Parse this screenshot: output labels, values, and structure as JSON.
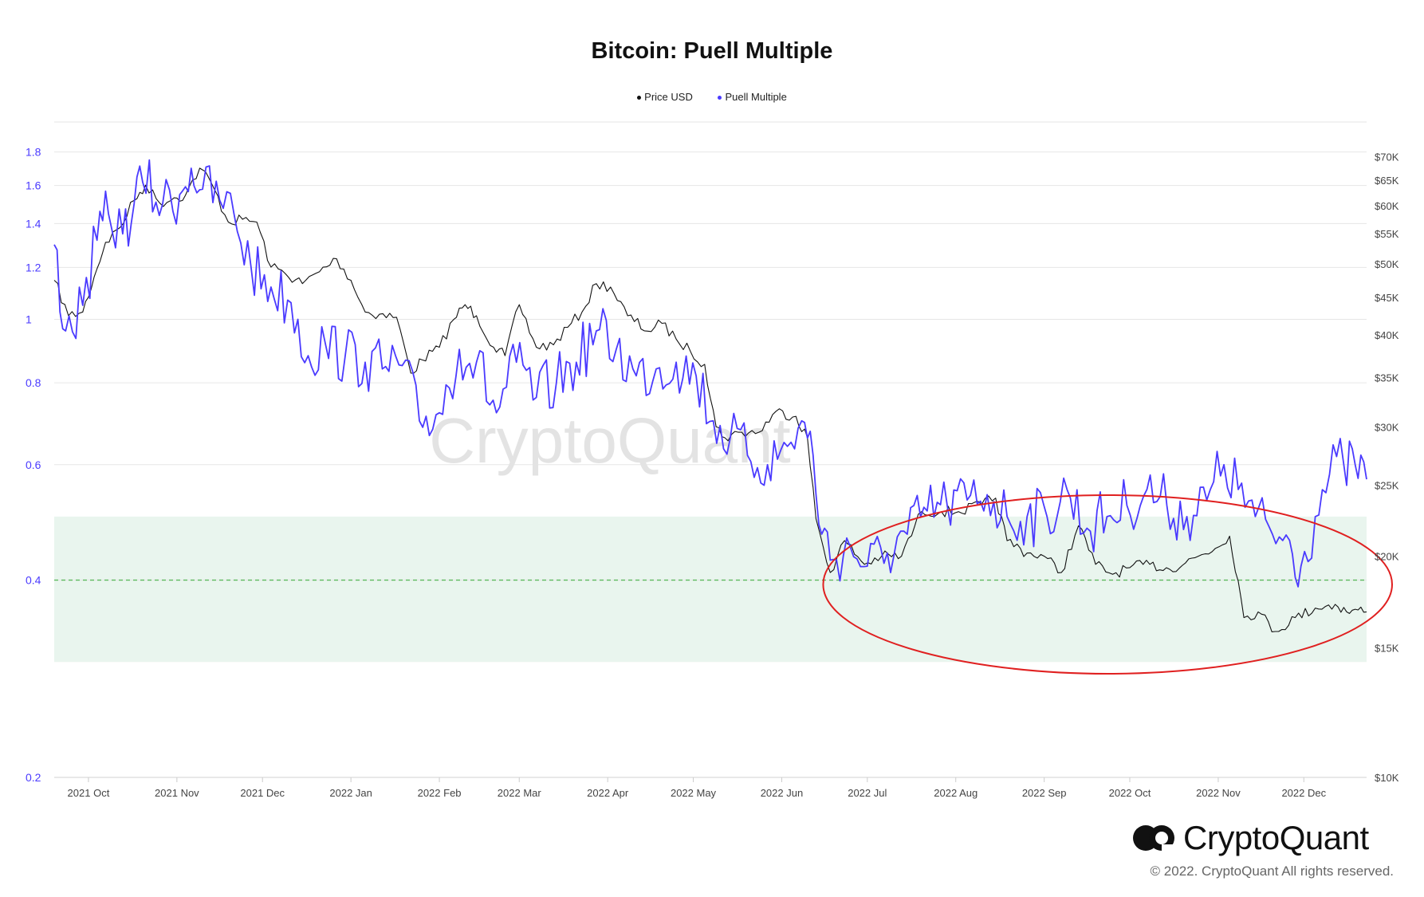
{
  "chart_data": {
    "type": "line",
    "title": "Bitcoin: Puell Multiple",
    "legend": [
      "Price USD",
      "Puell Multiple"
    ],
    "legend_position": "top-center",
    "watermark": "CryptoQuant",
    "x_range": [
      "2021-09-19",
      "2022-12-23"
    ],
    "x_ticks": [
      "2021 Oct",
      "2021 Nov",
      "2021 Dec",
      "2022 Jan",
      "2022 Feb",
      "2022 Mar",
      "2022 Apr",
      "2022 May",
      "2022 Jun",
      "2022 Jul",
      "2022 Aug",
      "2022 Sep",
      "2022 Oct",
      "2022 Nov",
      "2022 Dec"
    ],
    "left_axis": {
      "scale": "log",
      "range": [
        0.2,
        2.0
      ],
      "ticks": [
        "1.8",
        "1.6",
        "1.4",
        "1.2",
        "1",
        "0.8",
        "0.6",
        "0.4",
        "0.2"
      ],
      "color": "#4a3aff"
    },
    "right_axis": {
      "scale": "log",
      "range": [
        10000,
        78000
      ],
      "ticks": [
        "$70K",
        "$65K",
        "$60K",
        "$55K",
        "$50K",
        "$45K",
        "$40K",
        "$35K",
        "$30K",
        "$25K",
        "$20K",
        "$15K",
        "$10K"
      ]
    },
    "grid": true,
    "band": {
      "from": 0.3,
      "to": 0.5,
      "color": "#e9f5ee"
    },
    "reference_line": {
      "value": 0.4,
      "color": "#5cb85c",
      "style": "dashed"
    },
    "annotation": {
      "shape": "ellipse",
      "color": "#e02020",
      "from": "2022-06-20",
      "to": "2022-12-23"
    },
    "series": [
      {
        "name": "Price USD",
        "color": "#111111",
        "axis": "right",
        "points": [
          [
            "2021-09-19",
            47500
          ],
          [
            "2021-09-24",
            42500
          ],
          [
            "2021-09-29",
            43000
          ],
          [
            "2021-10-03",
            48000
          ],
          [
            "2021-10-07",
            53500
          ],
          [
            "2021-10-12",
            56000
          ],
          [
            "2021-10-17",
            61000
          ],
          [
            "2021-10-21",
            64000
          ],
          [
            "2021-10-26",
            60500
          ],
          [
            "2021-10-31",
            61500
          ],
          [
            "2021-11-04",
            62000
          ],
          [
            "2021-11-09",
            67500
          ],
          [
            "2021-11-13",
            64500
          ],
          [
            "2021-11-19",
            57000
          ],
          [
            "2021-11-24",
            57500
          ],
          [
            "2021-11-29",
            57000
          ],
          [
            "2021-12-04",
            49500
          ],
          [
            "2021-12-09",
            48500
          ],
          [
            "2021-12-15",
            47000
          ],
          [
            "2021-12-21",
            48800
          ],
          [
            "2021-12-27",
            50800
          ],
          [
            "2022-01-01",
            47500
          ],
          [
            "2022-01-06",
            43000
          ],
          [
            "2022-01-11",
            42700
          ],
          [
            "2022-01-17",
            42300
          ],
          [
            "2022-01-22",
            35500
          ],
          [
            "2022-01-26",
            37000
          ],
          [
            "2022-02-01",
            38500
          ],
          [
            "2022-02-06",
            42000
          ],
          [
            "2022-02-10",
            44000
          ],
          [
            "2022-02-14",
            42500
          ],
          [
            "2022-02-20",
            38500
          ],
          [
            "2022-02-24",
            37500
          ],
          [
            "2022-03-01",
            44000
          ],
          [
            "2022-03-07",
            38500
          ],
          [
            "2022-03-13",
            38800
          ],
          [
            "2022-03-18",
            41000
          ],
          [
            "2022-03-23",
            43000
          ],
          [
            "2022-03-28",
            47000
          ],
          [
            "2022-04-02",
            46500
          ],
          [
            "2022-04-08",
            42500
          ],
          [
            "2022-04-15",
            40500
          ],
          [
            "2022-04-20",
            41500
          ],
          [
            "2022-04-25",
            39500
          ],
          [
            "2022-04-30",
            38000
          ],
          [
            "2022-05-05",
            36500
          ],
          [
            "2022-05-09",
            30000
          ],
          [
            "2022-05-12",
            29000
          ],
          [
            "2022-05-18",
            29500
          ],
          [
            "2022-05-24",
            29500
          ],
          [
            "2022-05-30",
            31500
          ],
          [
            "2022-06-06",
            31000
          ],
          [
            "2022-06-10",
            29000
          ],
          [
            "2022-06-13",
            22500
          ],
          [
            "2022-06-18",
            19000
          ],
          [
            "2022-06-23",
            21000
          ],
          [
            "2022-06-30",
            19500
          ],
          [
            "2022-07-06",
            20000
          ],
          [
            "2022-07-13",
            20000
          ],
          [
            "2022-07-20",
            23000
          ],
          [
            "2022-07-27",
            23000
          ],
          [
            "2022-08-02",
            23000
          ],
          [
            "2022-08-10",
            23500
          ],
          [
            "2022-08-15",
            24000
          ],
          [
            "2022-08-19",
            21000
          ],
          [
            "2022-08-26",
            20200
          ],
          [
            "2022-09-01",
            20000
          ],
          [
            "2022-09-07",
            19000
          ],
          [
            "2022-09-13",
            22000
          ],
          [
            "2022-09-19",
            19500
          ],
          [
            "2022-09-25",
            18900
          ],
          [
            "2022-10-01",
            19300
          ],
          [
            "2022-10-08",
            19500
          ],
          [
            "2022-10-15",
            19200
          ],
          [
            "2022-10-25",
            20000
          ],
          [
            "2022-10-31",
            20500
          ],
          [
            "2022-11-05",
            21300
          ],
          [
            "2022-11-08",
            18500
          ],
          [
            "2022-11-10",
            16500
          ],
          [
            "2022-11-15",
            16800
          ],
          [
            "2022-11-21",
            15800
          ],
          [
            "2022-11-28",
            16500
          ],
          [
            "2022-12-05",
            17000
          ],
          [
            "2022-12-12",
            17200
          ],
          [
            "2022-12-16",
            16800
          ],
          [
            "2022-12-20",
            16900
          ],
          [
            "2022-12-23",
            16800
          ]
        ]
      },
      {
        "name": "Puell Multiple",
        "color": "#4a3aff",
        "axis": "left",
        "points": [
          [
            "2021-09-19",
            1.3
          ],
          [
            "2021-09-23",
            0.96
          ],
          [
            "2021-09-29",
            1.05
          ],
          [
            "2021-10-04",
            1.32
          ],
          [
            "2021-10-08",
            1.45
          ],
          [
            "2021-10-13",
            1.35
          ],
          [
            "2021-10-17",
            1.5
          ],
          [
            "2021-10-20",
            1.62
          ],
          [
            "2021-10-27",
            1.5
          ],
          [
            "2021-11-02",
            1.55
          ],
          [
            "2021-11-06",
            1.7
          ],
          [
            "2021-11-10",
            1.58
          ],
          [
            "2021-11-16",
            1.52
          ],
          [
            "2021-11-21",
            1.45
          ],
          [
            "2021-11-27",
            1.2
          ],
          [
            "2021-12-04",
            1.12
          ],
          [
            "2021-12-11",
            1.06
          ],
          [
            "2021-12-17",
            0.88
          ],
          [
            "2021-12-23",
            0.92
          ],
          [
            "2021-12-30",
            0.88
          ],
          [
            "2022-01-06",
            0.86
          ],
          [
            "2022-01-12",
            0.84
          ],
          [
            "2022-01-19",
            0.85
          ],
          [
            "2022-01-25",
            0.7
          ],
          [
            "2022-02-01",
            0.72
          ],
          [
            "2022-02-08",
            0.9
          ],
          [
            "2022-02-14",
            0.86
          ],
          [
            "2022-02-21",
            0.72
          ],
          [
            "2022-02-28",
            0.86
          ],
          [
            "2022-03-07",
            0.76
          ],
          [
            "2022-03-14",
            0.8
          ],
          [
            "2022-03-21",
            0.86
          ],
          [
            "2022-03-28",
            0.96
          ],
          [
            "2022-04-04",
            0.9
          ],
          [
            "2022-04-11",
            0.82
          ],
          [
            "2022-04-18",
            0.84
          ],
          [
            "2022-04-25",
            0.86
          ],
          [
            "2022-05-02",
            0.82
          ],
          [
            "2022-05-08",
            0.7
          ],
          [
            "2022-05-14",
            0.66
          ],
          [
            "2022-05-20",
            0.62
          ],
          [
            "2022-05-27",
            0.6
          ],
          [
            "2022-06-03",
            0.64
          ],
          [
            "2022-06-08",
            0.7
          ],
          [
            "2022-06-12",
            0.62
          ],
          [
            "2022-06-15",
            0.47
          ],
          [
            "2022-06-19",
            0.43
          ],
          [
            "2022-06-25",
            0.45
          ],
          [
            "2022-07-01",
            0.42
          ],
          [
            "2022-07-08",
            0.44
          ],
          [
            "2022-07-15",
            0.47
          ],
          [
            "2022-07-22",
            0.51
          ],
          [
            "2022-07-29",
            0.52
          ],
          [
            "2022-08-05",
            0.53
          ],
          [
            "2022-08-12",
            0.54
          ],
          [
            "2022-08-19",
            0.5
          ],
          [
            "2022-08-26",
            0.5
          ],
          [
            "2022-09-02",
            0.5
          ],
          [
            "2022-09-09",
            0.55
          ],
          [
            "2022-09-16",
            0.48
          ],
          [
            "2022-09-23",
            0.5
          ],
          [
            "2022-09-30",
            0.52
          ],
          [
            "2022-10-07",
            0.55
          ],
          [
            "2022-10-14",
            0.52
          ],
          [
            "2022-10-21",
            0.5
          ],
          [
            "2022-10-28",
            0.53
          ],
          [
            "2022-11-03",
            0.6
          ],
          [
            "2022-11-08",
            0.55
          ],
          [
            "2022-11-14",
            0.5
          ],
          [
            "2022-11-20",
            0.47
          ],
          [
            "2022-11-26",
            0.46
          ],
          [
            "2022-11-30",
            0.42
          ],
          [
            "2022-12-05",
            0.5
          ],
          [
            "2022-12-10",
            0.58
          ],
          [
            "2022-12-15",
            0.6
          ],
          [
            "2022-12-19",
            0.6
          ],
          [
            "2022-12-23",
            0.57
          ]
        ]
      }
    ]
  },
  "branding": {
    "name": "CryptoQuant",
    "copyright": "© 2022. CryptoQuant All rights reserved."
  }
}
